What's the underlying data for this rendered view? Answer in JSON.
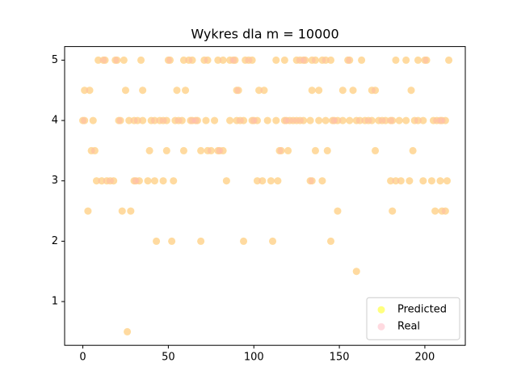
{
  "chart_data": {
    "type": "scatter",
    "title": "Wykres dla m = 10000",
    "xlim": [
      -10.65,
      223.65
    ],
    "ylim": [
      0.275,
      5.225
    ],
    "xticks": [
      0,
      50,
      100,
      150,
      200
    ],
    "yticks": [
      1,
      2,
      3,
      4,
      5
    ],
    "legend": "lower right",
    "alpha": 0.5,
    "series": [
      {
        "name": "Predicted",
        "color": "#ffff00",
        "x": [
          9,
          12,
          13,
          19,
          20,
          24,
          34,
          50,
          51,
          59,
          62,
          64,
          71,
          73,
          79,
          82,
          86,
          88,
          89,
          95,
          97,
          99,
          113,
          118,
          125,
          127,
          129,
          130,
          134,
          136,
          140,
          142,
          145,
          155,
          156,
          163,
          183,
          189,
          196,
          200,
          201,
          214,
          1,
          4,
          25,
          35,
          55,
          60,
          90,
          91,
          103,
          106,
          134,
          138,
          152,
          158,
          169,
          171,
          192,
          0,
          1,
          6,
          21,
          22,
          27,
          30,
          32,
          35,
          40,
          42,
          45,
          47,
          49,
          54,
          56,
          58,
          63,
          64,
          66,
          67,
          72,
          77,
          86,
          90,
          92,
          94,
          99,
          100,
          102,
          108,
          113,
          118,
          119,
          121,
          123,
          125,
          127,
          129,
          133,
          138,
          142,
          146,
          147,
          149,
          152,
          156,
          160,
          162,
          165,
          167,
          169,
          173,
          175,
          177,
          180,
          181,
          185,
          189,
          194,
          196,
          199,
          205,
          207,
          209,
          210,
          212,
          5,
          7,
          39,
          49,
          59,
          69,
          73,
          75,
          79,
          80,
          82,
          115,
          116,
          120,
          136,
          143,
          171,
          193,
          8,
          11,
          14,
          16,
          18,
          30,
          31,
          33,
          38,
          42,
          47,
          53,
          84,
          102,
          105,
          110,
          114,
          133,
          134,
          140,
          180,
          183,
          186,
          191,
          199,
          204,
          209,
          213,
          3,
          23,
          28,
          149,
          181,
          206,
          210,
          212,
          43,
          52,
          69,
          94,
          111,
          145,
          160,
          26
        ],
        "values": [
          5,
          5,
          5,
          5,
          5,
          5,
          5,
          5,
          5,
          5,
          5,
          5,
          5,
          5,
          5,
          5,
          5,
          5,
          5,
          5,
          5,
          5,
          5,
          5,
          5,
          5,
          5,
          5,
          5,
          5,
          5,
          5,
          5,
          5,
          5,
          5,
          5,
          5,
          5,
          5,
          5,
          5,
          4.5,
          4.5,
          4.5,
          4.5,
          4.5,
          4.5,
          4.5,
          4.5,
          4.5,
          4.5,
          4.5,
          4.5,
          4.5,
          4.5,
          4.5,
          4.5,
          4.5,
          4,
          4,
          4,
          4,
          4,
          4,
          4,
          4,
          4,
          4,
          4,
          4,
          4,
          4,
          4,
          4,
          4,
          4,
          4,
          4,
          4,
          4,
          4,
          4,
          4,
          4,
          4,
          4,
          4,
          4,
          4,
          4,
          4,
          4,
          4,
          4,
          4,
          4,
          4,
          4,
          4,
          4,
          4,
          4,
          4,
          4,
          4,
          4,
          4,
          4,
          4,
          4,
          4,
          4,
          4,
          4,
          4,
          4,
          4,
          4,
          4,
          4,
          4,
          4,
          4,
          4,
          4,
          3.5,
          3.5,
          3.5,
          3.5,
          3.5,
          3.5,
          3.5,
          3.5,
          3.5,
          3.5,
          3.5,
          3.5,
          3.5,
          3.5,
          3.5,
          3.5,
          3.5,
          3.5,
          3,
          3,
          3,
          3,
          3,
          3,
          3,
          3,
          3,
          3,
          3,
          3,
          3,
          3,
          3,
          3,
          3,
          3,
          3,
          3,
          3,
          3,
          3,
          3,
          3,
          3,
          3,
          3,
          2.5,
          2.5,
          2.5,
          2.5,
          2.5,
          2.5,
          2.5,
          2.5,
          2,
          2,
          2,
          2,
          2,
          2,
          1.5,
          0.5
        ]
      },
      {
        "name": "Real",
        "color": "#ffb6c1",
        "x": [
          9,
          12,
          13,
          19,
          20,
          24,
          34,
          50,
          51,
          59,
          62,
          64,
          71,
          73,
          79,
          82,
          86,
          88,
          89,
          95,
          97,
          99,
          113,
          118,
          125,
          127,
          129,
          130,
          134,
          136,
          140,
          142,
          145,
          155,
          156,
          163,
          183,
          189,
          196,
          200,
          201,
          214,
          1,
          4,
          25,
          35,
          55,
          60,
          90,
          91,
          103,
          106,
          134,
          138,
          152,
          158,
          169,
          171,
          192,
          0,
          1,
          6,
          21,
          22,
          27,
          30,
          32,
          35,
          40,
          42,
          45,
          47,
          49,
          54,
          56,
          58,
          63,
          64,
          66,
          67,
          72,
          77,
          86,
          90,
          92,
          94,
          99,
          100,
          102,
          108,
          113,
          118,
          119,
          121,
          123,
          125,
          127,
          129,
          133,
          138,
          142,
          146,
          147,
          149,
          152,
          156,
          160,
          162,
          165,
          167,
          169,
          173,
          175,
          177,
          180,
          181,
          185,
          189,
          194,
          196,
          199,
          205,
          207,
          209,
          210,
          212,
          5,
          7,
          39,
          49,
          59,
          69,
          73,
          75,
          79,
          80,
          82,
          115,
          116,
          120,
          136,
          143,
          171,
          193,
          8,
          11,
          14,
          16,
          18,
          30,
          31,
          33,
          38,
          42,
          47,
          53,
          84,
          102,
          105,
          110,
          114,
          133,
          134,
          140,
          180,
          183,
          186,
          191,
          199,
          204,
          209,
          213,
          3,
          23,
          28,
          149,
          181,
          206,
          210,
          212,
          43,
          52,
          69,
          94,
          111,
          145,
          160,
          26
        ],
        "values": [
          5,
          5,
          5,
          5,
          5,
          5,
          5,
          5,
          5,
          5,
          5,
          5,
          5,
          5,
          5,
          5,
          5,
          5,
          5,
          5,
          5,
          5,
          5,
          5,
          5,
          5,
          5,
          5,
          5,
          5,
          5,
          5,
          5,
          5,
          5,
          5,
          5,
          5,
          5,
          5,
          5,
          5,
          4.5,
          4.5,
          4.5,
          4.5,
          4.5,
          4.5,
          4.5,
          4.5,
          4.5,
          4.5,
          4.5,
          4.5,
          4.5,
          4.5,
          4.5,
          4.5,
          4.5,
          4,
          4,
          4,
          4,
          4,
          4,
          4,
          4,
          4,
          4,
          4,
          4,
          4,
          4,
          4,
          4,
          4,
          4,
          4,
          4,
          4,
          4,
          4,
          4,
          4,
          4,
          4,
          4,
          4,
          4,
          4,
          4,
          4,
          4,
          4,
          4,
          4,
          4,
          4,
          4,
          4,
          4,
          4,
          4,
          4,
          4,
          4,
          4,
          4,
          4,
          4,
          4,
          4,
          4,
          4,
          4,
          4,
          4,
          4,
          4,
          4,
          4,
          4,
          4,
          4,
          4,
          4,
          3.5,
          3.5,
          3.5,
          3.5,
          3.5,
          3.5,
          3.5,
          3.5,
          3.5,
          3.5,
          3.5,
          3.5,
          3.5,
          3.5,
          3.5,
          3.5,
          3.5,
          3.5,
          3,
          3,
          3,
          3,
          3,
          3,
          3,
          3,
          3,
          3,
          3,
          3,
          3,
          3,
          3,
          3,
          3,
          3,
          3,
          3,
          3,
          3,
          3,
          3,
          3,
          3,
          3,
          3,
          2.5,
          2.5,
          2.5,
          2.5,
          2.5,
          2.5,
          2.5,
          2.5,
          2,
          2,
          2,
          2,
          2,
          2,
          1.5,
          0.5
        ]
      }
    ]
  }
}
